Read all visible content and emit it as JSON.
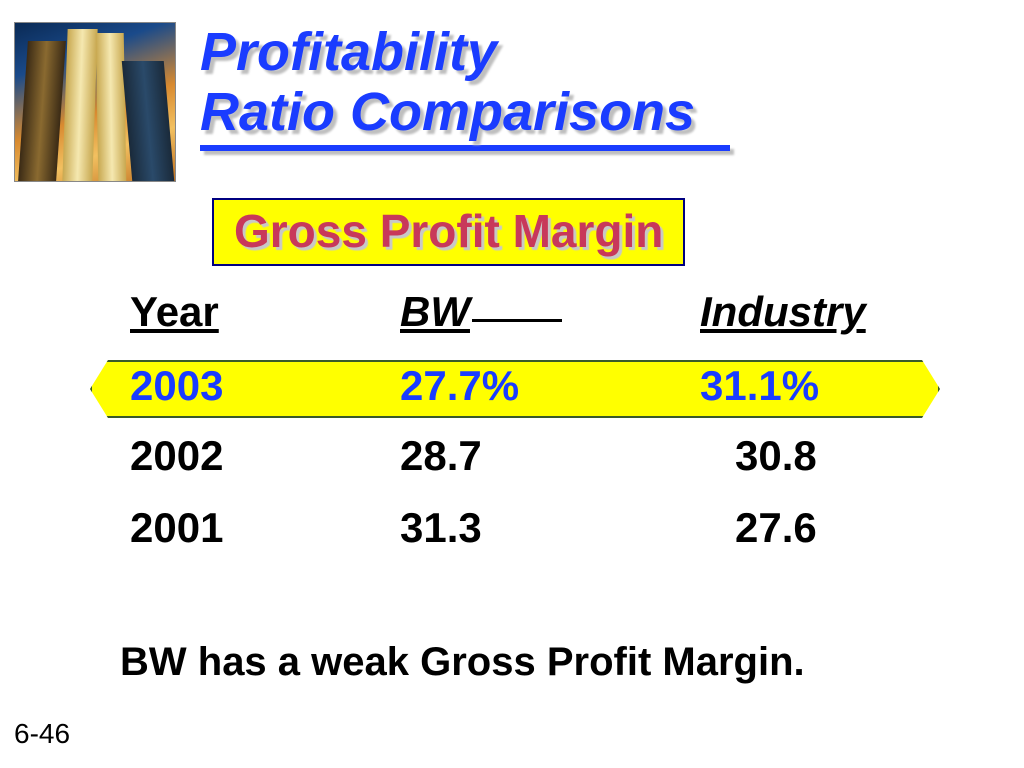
{
  "title": {
    "line1": "Profitability",
    "line2": "Ratio Comparisons",
    "color": "#1a3cff",
    "shadow_color": "#bfbfbf",
    "font_size": 54,
    "underline_width": 530,
    "underline_thickness": 6
  },
  "subtitle": {
    "text": "Gross Profit Margin",
    "text_color": "#c8385a",
    "bg_color": "#ffff00",
    "border_color": "#000080",
    "font_size": 46
  },
  "table": {
    "headers": {
      "year": "Year",
      "bw": "BW",
      "industry": "Industry"
    },
    "highlight_row": {
      "year": "2003",
      "bw": "27.7%",
      "industry": "31.1%",
      "text_color": "#1a3cff",
      "bg_color": "#ffff00",
      "border_color": "#3a5a2a"
    },
    "rows": [
      {
        "year": "2002",
        "bw": "28.7",
        "industry": "30.8"
      },
      {
        "year": "2001",
        "bw": "31.3",
        "industry": "27.6"
      }
    ],
    "header_font_size": 42,
    "cell_font_size": 42,
    "cell_color": "#000000"
  },
  "footnote": "BW has a weak Gross Profit Margin.",
  "slide_number": "6-46",
  "decorative_image": {
    "description": "skyscrapers-photo",
    "gradient_colors": [
      "#0a2a55",
      "#1a4a8a",
      "#d88a30",
      "#f2c060",
      "#c07020"
    ]
  },
  "background_color": "#ffffff"
}
